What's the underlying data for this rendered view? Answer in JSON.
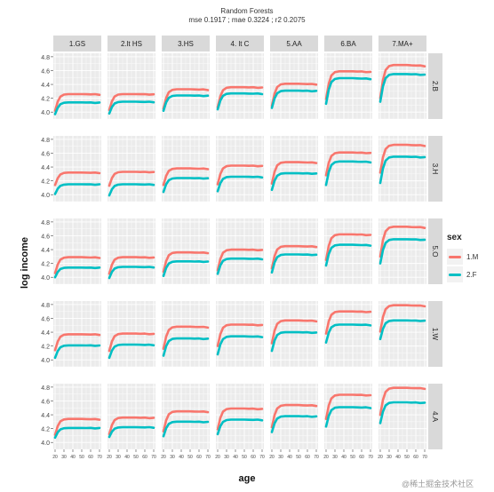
{
  "title": {
    "line1": "Random Forests",
    "line2": "mse 0.1917 ; mae 0.3224 ; r2 0.2075"
  },
  "watermark": "@稀土掘金技术社区",
  "colors": {
    "M": "#f8766d",
    "F": "#00bfc4",
    "panel_bg": "#ebebeb",
    "strip_bg": "#d9d9d9",
    "grid": "#ffffff"
  },
  "chart_data": {
    "type": "line",
    "facet": "grid",
    "xlabel": "age",
    "ylabel": "log income",
    "ylim": [
      3.9,
      4.85
    ],
    "yticks": [
      "4.0",
      "4.2",
      "4.4",
      "4.6",
      "4.8"
    ],
    "xlim": [
      18,
      72
    ],
    "xticks": [
      20,
      30,
      40,
      50,
      60,
      70
    ],
    "grid": true,
    "legend": {
      "title": "sex",
      "placement": "right",
      "entries": [
        "1.M",
        "2.F"
      ]
    },
    "columns": [
      "1.GS",
      "2.lt HS",
      "3.HS",
      "4. lt C",
      "5.AA",
      "6.BA",
      "7.MA+"
    ],
    "rows": [
      "2.B",
      "3.H",
      "5.O",
      "1.W",
      "4.A"
    ],
    "curve_shape": {
      "ages": [
        20,
        23,
        26,
        30,
        35,
        40,
        45,
        50,
        55,
        60,
        65,
        70
      ],
      "fraction_of_plateau": [
        0.0,
        0.55,
        0.85,
        0.97,
        1.0,
        1.0,
        1.0,
        1.0,
        0.99,
        0.99,
        0.98,
        0.97
      ]
    },
    "series": [
      {
        "name": "1.M",
        "row": "2.B",
        "start": [
          4.02,
          4.03,
          4.05,
          4.07,
          4.09,
          4.19,
          4.2
        ],
        "plateau": [
          4.26,
          4.26,
          4.33,
          4.36,
          4.41,
          4.59,
          4.68
        ]
      },
      {
        "name": "2.F",
        "row": "2.B",
        "start": [
          3.97,
          3.98,
          4.02,
          4.04,
          4.06,
          4.12,
          4.15
        ],
        "plateau": [
          4.14,
          4.15,
          4.24,
          4.27,
          4.31,
          4.49,
          4.55
        ]
      },
      {
        "name": "1.M",
        "row": "3.H",
        "start": [
          4.14,
          4.13,
          4.14,
          4.15,
          4.16,
          4.28,
          4.32
        ],
        "plateau": [
          4.32,
          4.33,
          4.38,
          4.42,
          4.47,
          4.61,
          4.72
        ]
      },
      {
        "name": "2.F",
        "row": "3.H",
        "start": [
          4.01,
          3.99,
          4.04,
          4.05,
          4.07,
          4.14,
          4.17
        ],
        "plateau": [
          4.15,
          4.15,
          4.24,
          4.26,
          4.31,
          4.48,
          4.55
        ]
      },
      {
        "name": "1.M",
        "row": "5.O",
        "start": [
          4.06,
          4.05,
          4.08,
          4.1,
          4.13,
          4.25,
          4.3
        ],
        "plateau": [
          4.29,
          4.29,
          4.36,
          4.4,
          4.45,
          4.62,
          4.73
        ]
      },
      {
        "name": "2.F",
        "row": "5.O",
        "start": [
          4.0,
          3.99,
          4.02,
          4.05,
          4.07,
          4.17,
          4.2
        ],
        "plateau": [
          4.14,
          4.15,
          4.23,
          4.27,
          4.33,
          4.47,
          4.55
        ]
      },
      {
        "name": "1.M",
        "row": "1.W",
        "start": [
          4.14,
          4.13,
          4.16,
          4.2,
          4.24,
          4.38,
          4.41
        ],
        "plateau": [
          4.37,
          4.38,
          4.48,
          4.51,
          4.57,
          4.7,
          4.79
        ]
      },
      {
        "name": "2.F",
        "row": "1.W",
        "start": [
          4.03,
          4.03,
          4.06,
          4.08,
          4.13,
          4.25,
          4.3
        ],
        "plateau": [
          4.21,
          4.22,
          4.31,
          4.34,
          4.4,
          4.51,
          4.57
        ]
      },
      {
        "name": "1.M",
        "row": "4.A",
        "start": [
          4.11,
          4.12,
          4.16,
          4.19,
          4.22,
          4.34,
          4.4
        ],
        "plateau": [
          4.34,
          4.36,
          4.45,
          4.49,
          4.54,
          4.69,
          4.79
        ]
      },
      {
        "name": "2.F",
        "row": "4.A",
        "start": [
          4.07,
          4.08,
          4.09,
          4.12,
          4.15,
          4.23,
          4.28
        ],
        "plateau": [
          4.21,
          4.22,
          4.3,
          4.33,
          4.38,
          4.51,
          4.58
        ]
      }
    ]
  }
}
